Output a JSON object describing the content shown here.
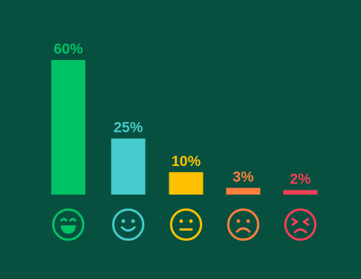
{
  "page": {
    "background": "#075040"
  },
  "chart_data": {
    "type": "bar",
    "categories": [
      "very-happy",
      "happy",
      "neutral",
      "sad",
      "very-upset"
    ],
    "values": [
      60,
      25,
      10,
      3,
      2
    ],
    "labels": [
      "60%",
      "25%",
      "10%",
      "3%",
      "2%"
    ],
    "colors": [
      "#00C264",
      "#45CBCB",
      "#FFC000",
      "#FF7F3C",
      "#F24056"
    ],
    "icons": [
      "grinning-face-icon",
      "smiling-face-icon",
      "neutral-face-icon",
      "frowning-face-icon",
      "upset-face-icon"
    ],
    "ylim": [
      0,
      60
    ],
    "grid": false,
    "title": "",
    "xlabel": "",
    "ylabel": ""
  }
}
